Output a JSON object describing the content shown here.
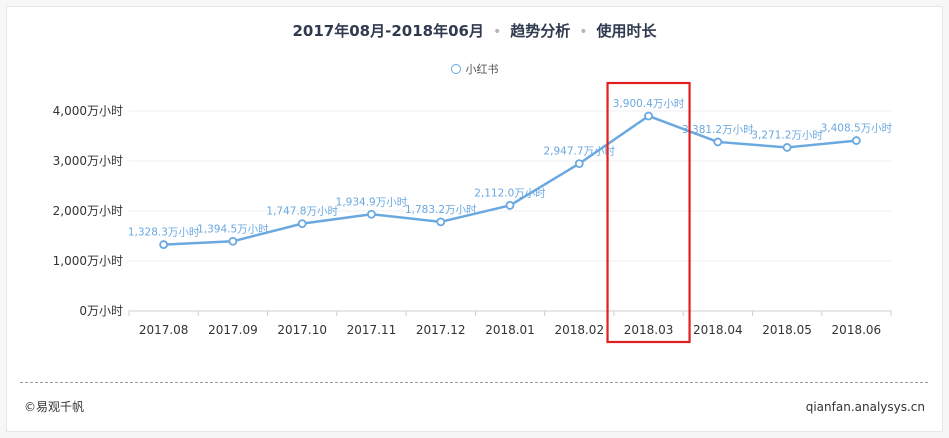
{
  "title": {
    "period": "2017年08月-2018年06月",
    "part2": "趋势分析",
    "part3": "使用时长",
    "separator": "•"
  },
  "legend": {
    "label": "小红书"
  },
  "footer": {
    "left": "©易观千帆",
    "right": "qianfan.analysys.cn"
  },
  "colors": {
    "line": "#6aa8e0",
    "label": "#6aa8e0",
    "highlight": "#e02020",
    "axis_text": "#333333"
  },
  "chart_data": {
    "type": "line",
    "categories": [
      "2017.08",
      "2017.09",
      "2017.10",
      "2017.11",
      "2017.12",
      "2018.01",
      "2018.02",
      "2018.03",
      "2018.04",
      "2018.05",
      "2018.06"
    ],
    "series": [
      {
        "name": "小红书",
        "values": [
          1328.3,
          1394.5,
          1747.8,
          1934.9,
          1783.2,
          2112.0,
          2947.7,
          3900.4,
          3381.2,
          3271.2,
          3408.5
        ],
        "labels": [
          "1,328.3万小时",
          "1,394.5万小时",
          "1,747.8万小时",
          "1,934.9万小时",
          "1,783.2万小时",
          "2,112.0万小时",
          "2,947.7万小时",
          "3,900.4万小时",
          "3,381.2万小时",
          "3,271.2万小时",
          "3,408.5万小时"
        ]
      }
    ],
    "y_ticks": [
      0,
      1000,
      2000,
      3000,
      4000
    ],
    "y_tick_labels": [
      "0万小时",
      "1,000万小时",
      "2,000万小时",
      "3,000万小时",
      "4,000万小时"
    ],
    "ylim": [
      0,
      4000
    ],
    "grid": true,
    "legend_position": "top-center",
    "highlight_category": "2018.03"
  }
}
